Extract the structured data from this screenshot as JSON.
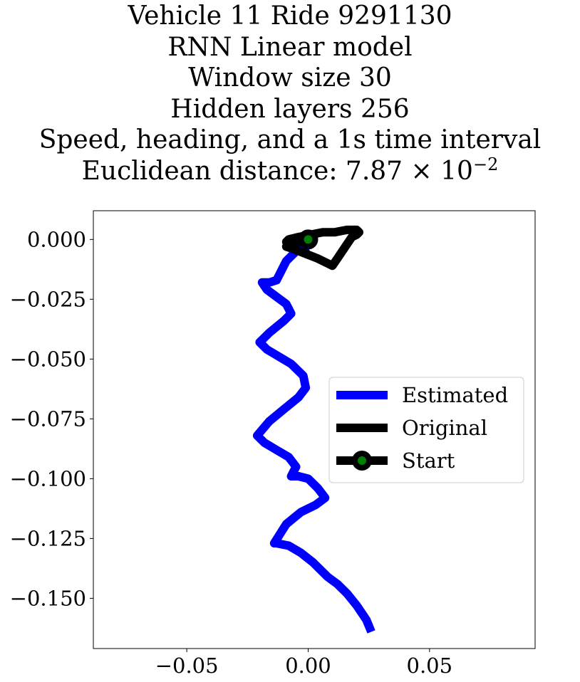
{
  "chart_data": {
    "type": "line",
    "title_lines": [
      "Vehicle 11 Ride 9291130",
      "RNN Linear model",
      "Window size 30",
      "Hidden layers 256",
      "Speed, heading, and a 1s time interval"
    ],
    "title_distance_prefix": "Euclidean distance: 7.87 × 10",
    "title_distance_exponent": "−2",
    "xlim": [
      -0.0885,
      0.0935
    ],
    "ylim": [
      -0.171,
      0.012
    ],
    "x_ticks": [
      -0.05,
      0.0,
      0.05
    ],
    "x_tick_labels": [
      "−0.05",
      "0.00",
      "0.05"
    ],
    "y_ticks": [
      0.0,
      -0.025,
      -0.05,
      -0.075,
      -0.1,
      -0.125,
      -0.15
    ],
    "y_tick_labels": [
      "0.000",
      "−0.025",
      "−0.050",
      "−0.075",
      "−0.100",
      "−0.125",
      "−0.150"
    ],
    "grid": false,
    "legend_position": "center-right",
    "series": [
      {
        "name": "Estimated",
        "color": "#0000ff",
        "x": [
          0.0,
          -0.005,
          -0.009,
          -0.011,
          -0.013,
          -0.016,
          -0.019,
          -0.017,
          -0.013,
          -0.009,
          -0.007,
          -0.01,
          -0.016,
          -0.02,
          -0.017,
          -0.012,
          -0.007,
          -0.002,
          -0.001,
          -0.004,
          -0.01,
          -0.016,
          -0.021,
          -0.018,
          -0.013,
          -0.008,
          -0.005,
          -0.007,
          -0.004,
          0.0,
          0.004,
          0.007,
          0.003,
          -0.003,
          -0.009,
          -0.014,
          -0.013,
          -0.008,
          -0.003,
          0.002,
          0.008,
          0.012,
          0.016,
          0.02,
          0.024,
          0.026
        ],
        "y": [
          -0.003,
          -0.005,
          -0.009,
          -0.013,
          -0.017,
          -0.018,
          -0.018,
          -0.021,
          -0.024,
          -0.027,
          -0.031,
          -0.034,
          -0.039,
          -0.043,
          -0.046,
          -0.049,
          -0.052,
          -0.057,
          -0.062,
          -0.066,
          -0.071,
          -0.076,
          -0.082,
          -0.085,
          -0.088,
          -0.091,
          -0.095,
          -0.099,
          -0.099,
          -0.1,
          -0.104,
          -0.108,
          -0.111,
          -0.114,
          -0.119,
          -0.127,
          -0.127,
          -0.128,
          -0.131,
          -0.135,
          -0.141,
          -0.144,
          -0.148,
          -0.153,
          -0.159,
          -0.164
        ]
      },
      {
        "name": "Original",
        "color": "#000000",
        "x": [
          0.0,
          -0.003,
          -0.007,
          -0.009,
          -0.006,
          -0.001,
          0.004,
          0.008,
          0.01,
          0.012,
          0.014,
          0.016,
          0.018,
          0.02,
          0.021,
          0.02,
          0.016,
          0.011,
          0.006,
          0.001,
          -0.004,
          -0.008,
          -0.009,
          -0.006,
          -0.002,
          0.0
        ],
        "y": [
          0.0,
          -0.001,
          -0.002,
          -0.003,
          -0.004,
          -0.006,
          -0.008,
          -0.01,
          -0.011,
          -0.008,
          -0.005,
          -0.002,
          0.001,
          0.002,
          0.003,
          0.004,
          0.004,
          0.003,
          0.003,
          0.002,
          0.001,
          0.0,
          -0.001,
          -0.001,
          0.0,
          0.0
        ]
      }
    ],
    "start_point": {
      "name": "Start",
      "x": 0.0,
      "y": 0.0,
      "marker_face": "#008000",
      "marker_edge": "#000000"
    }
  }
}
